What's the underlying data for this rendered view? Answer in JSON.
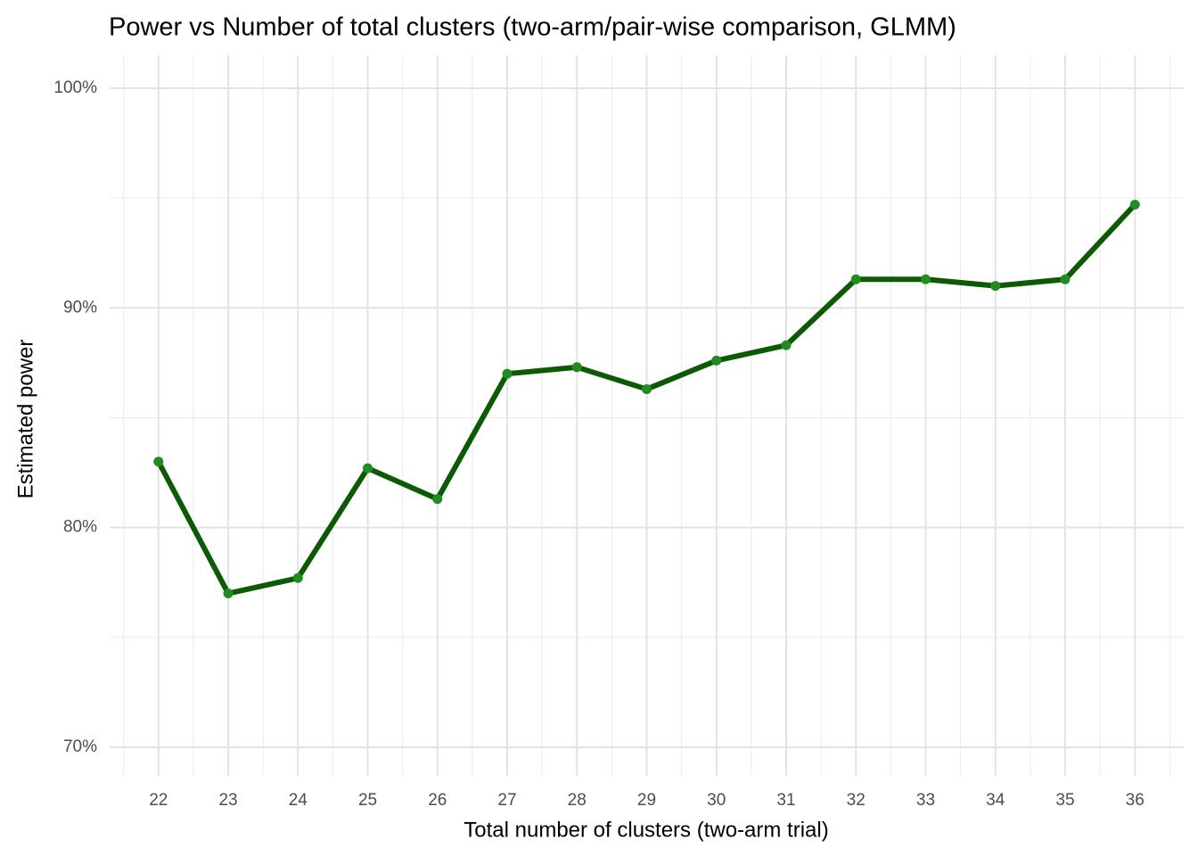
{
  "chart_data": {
    "type": "line",
    "title": "Power vs Number of total clusters (two-arm/pair-wise comparison, GLMM)",
    "xlabel": "Total number of clusters (two-arm trial)",
    "ylabel": "Estimated power",
    "x": [
      22,
      23,
      24,
      25,
      26,
      27,
      28,
      29,
      30,
      31,
      32,
      33,
      34,
      35,
      36
    ],
    "series": [
      {
        "name": "Estimated power",
        "color": "#0d5a04",
        "marker_color": "#228b22",
        "values": [
          83.0,
          77.0,
          77.7,
          82.7,
          81.3,
          87.0,
          87.3,
          86.3,
          87.6,
          88.3,
          91.3,
          91.3,
          91.0,
          91.3,
          94.7
        ]
      }
    ],
    "xlim": [
      21.3,
      36.7
    ],
    "xticks": [
      22,
      23,
      24,
      25,
      26,
      27,
      28,
      29,
      30,
      31,
      32,
      33,
      34,
      35,
      36
    ],
    "ylim": [
      68.7,
      101.5
    ],
    "yticks": [
      {
        "value": 70,
        "label": "70%"
      },
      {
        "value": 80,
        "label": "80%"
      },
      {
        "value": 90,
        "label": "90%"
      },
      {
        "value": 100,
        "label": "100%"
      }
    ],
    "grid": true
  }
}
